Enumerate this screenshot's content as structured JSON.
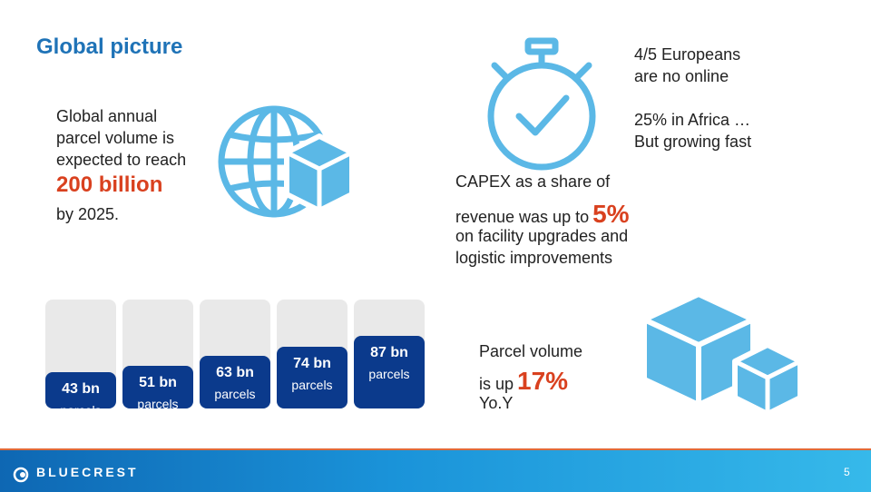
{
  "title": "Global picture",
  "intro": {
    "line1": "Global annual",
    "line2": "parcel volume is",
    "line3": "expected to reach",
    "highlight": "200 billion",
    "tail": "by 2025."
  },
  "stats": {
    "euro_line1": "4/5 Europeans",
    "euro_line2": "are no online",
    "africa_line1": "25% in Africa …",
    "africa_line2": "But growing fast",
    "capex_line1": "CAPEX as a share of",
    "capex_line2": "revenue was up to",
    "capex_value": "5%",
    "capex_line3": "on facility upgrades and",
    "capex_line4": "logistic improvements",
    "parcel_line1": "Parcel volume",
    "parcel_line2": "is up",
    "parcel_value": "17%",
    "parcel_line3": "Yo.Y"
  },
  "chart_data": {
    "type": "bar",
    "categories": [
      "",
      "",
      "",
      "",
      ""
    ],
    "values": [
      43,
      51,
      63,
      74,
      87
    ],
    "value_labels": [
      "43 bn",
      "51 bn",
      "63 bn",
      "74 bn",
      "87 bn"
    ],
    "unit_label": "parcels",
    "ylim": [
      0,
      130
    ],
    "title": "",
    "xlabel": "",
    "ylabel": ""
  },
  "footer": {
    "logo": "BLUECREST",
    "page": "5"
  },
  "colors": {
    "accent": "#1f73b7",
    "highlight": "#d9411f",
    "bar": "#0b3a8c",
    "icon": "#5bb8e6"
  }
}
